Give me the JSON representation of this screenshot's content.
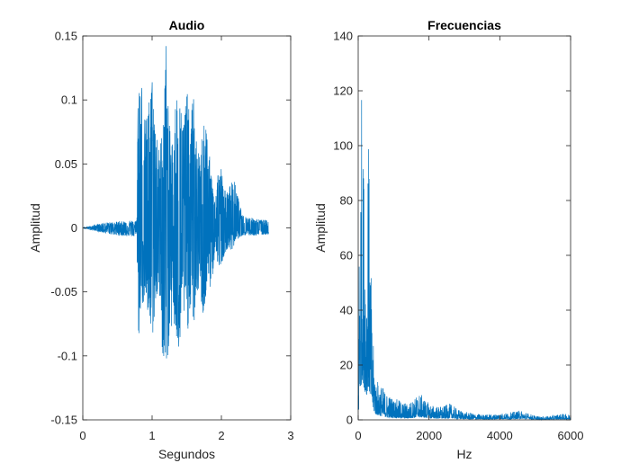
{
  "chart_data": [
    {
      "type": "line",
      "title": "Audio",
      "xlabel": "Segundos",
      "ylabel": "Amplitud",
      "xlim": [
        0,
        3
      ],
      "ylim": [
        -0.15,
        0.15
      ],
      "xticks": [
        0,
        1,
        2,
        3
      ],
      "xtick_labels": [
        "0",
        "1",
        "2",
        "3"
      ],
      "yticks": [
        -0.15,
        -0.1,
        -0.05,
        0,
        0.05,
        0.1,
        0.15
      ],
      "ytick_labels": [
        "-0.15",
        "-0.1",
        "-0.05",
        "0",
        "0.05",
        "0.1",
        "0.15"
      ],
      "grid": false,
      "color": "#0072bd",
      "series": [
        {
          "x": [
            0,
            0.3,
            0.5,
            0.78,
            0.8,
            0.82,
            0.85,
            0.9,
            0.95,
            1.0,
            1.05,
            1.1,
            1.15,
            1.2,
            1.25,
            1.3,
            1.35,
            1.4,
            1.45,
            1.5,
            1.55,
            1.6,
            1.65,
            1.7,
            1.75,
            1.8,
            1.85,
            1.9,
            1.95,
            2.0,
            2.05,
            2.1,
            2.15,
            2.2,
            2.3,
            2.5,
            2.68
          ],
          "upper": [
            0.0,
            0.004,
            0.005,
            0.006,
            0.145,
            0.12,
            0.118,
            0.082,
            0.1,
            0.12,
            0.085,
            0.06,
            0.08,
            0.15,
            0.08,
            0.068,
            0.11,
            0.1,
            0.085,
            0.112,
            0.08,
            0.11,
            0.058,
            0.06,
            0.095,
            0.072,
            0.045,
            0.025,
            0.045,
            0.048,
            0.03,
            0.028,
            0.04,
            0.035,
            0.01,
            0.007,
            0.006
          ],
          "lower": [
            0.0,
            -0.004,
            -0.006,
            -0.007,
            -0.098,
            -0.07,
            -0.06,
            -0.06,
            -0.075,
            -0.09,
            -0.06,
            -0.05,
            -0.1,
            -0.115,
            -0.09,
            -0.07,
            -0.095,
            -0.1,
            -0.065,
            -0.09,
            -0.06,
            -0.08,
            -0.05,
            -0.055,
            -0.075,
            -0.04,
            -0.05,
            -0.025,
            -0.03,
            -0.028,
            -0.02,
            -0.015,
            -0.02,
            -0.01,
            -0.006,
            -0.006,
            -0.005
          ]
        }
      ]
    },
    {
      "type": "line",
      "title": "Frecuencias",
      "xlabel": "Hz",
      "ylabel": "Amplitud",
      "xlim": [
        0,
        6000
      ],
      "ylim": [
        0,
        140
      ],
      "xticks": [
        0,
        2000,
        4000,
        6000
      ],
      "xtick_labels": [
        "0",
        "2000",
        "4000",
        "6000"
      ],
      "yticks": [
        0,
        20,
        40,
        60,
        80,
        100,
        120,
        140
      ],
      "ytick_labels": [
        "0",
        "20",
        "40",
        "60",
        "80",
        "100",
        "120",
        "140"
      ],
      "grid": false,
      "color": "#0072bd",
      "series": [
        {
          "x": [
            0,
            40,
            80,
            110,
            130,
            160,
            200,
            240,
            280,
            320,
            360,
            400,
            450,
            500,
            600,
            700,
            800,
            900,
            1000,
            1200,
            1400,
            1600,
            1700,
            1800,
            2000,
            2200,
            2400,
            2600,
            2800,
            3000,
            3200,
            3500,
            3800,
            4000,
            4200,
            4400,
            4600,
            4800,
            5000,
            5200,
            5400,
            5600,
            5800,
            6000
          ],
          "peak": [
            10,
            95,
            123,
            120,
            100,
            98,
            80,
            60,
            120,
            80,
            55,
            30,
            25,
            15,
            14,
            12,
            10,
            9,
            8,
            7,
            6,
            8,
            10,
            9,
            6,
            5,
            5,
            6,
            4,
            3,
            2.5,
            2,
            2,
            2.5,
            2.5,
            3,
            3.5,
            2.5,
            1.5,
            1.2,
            1.5,
            2,
            2.2,
            2
          ],
          "floor": [
            0,
            8,
            12,
            15,
            14,
            12,
            10,
            9,
            12,
            10,
            8,
            5,
            3,
            2,
            1.5,
            1.2,
            1,
            0.8,
            0.8,
            0.6,
            0.5,
            0.8,
            1,
            0.9,
            0.6,
            0.5,
            0.5,
            0.6,
            0.4,
            0.3,
            0.2,
            0.2,
            0.2,
            0.3,
            0.3,
            0.3,
            0.4,
            0.3,
            0.1,
            0.1,
            0.1,
            0.2,
            0.2,
            0.2
          ]
        }
      ]
    }
  ]
}
